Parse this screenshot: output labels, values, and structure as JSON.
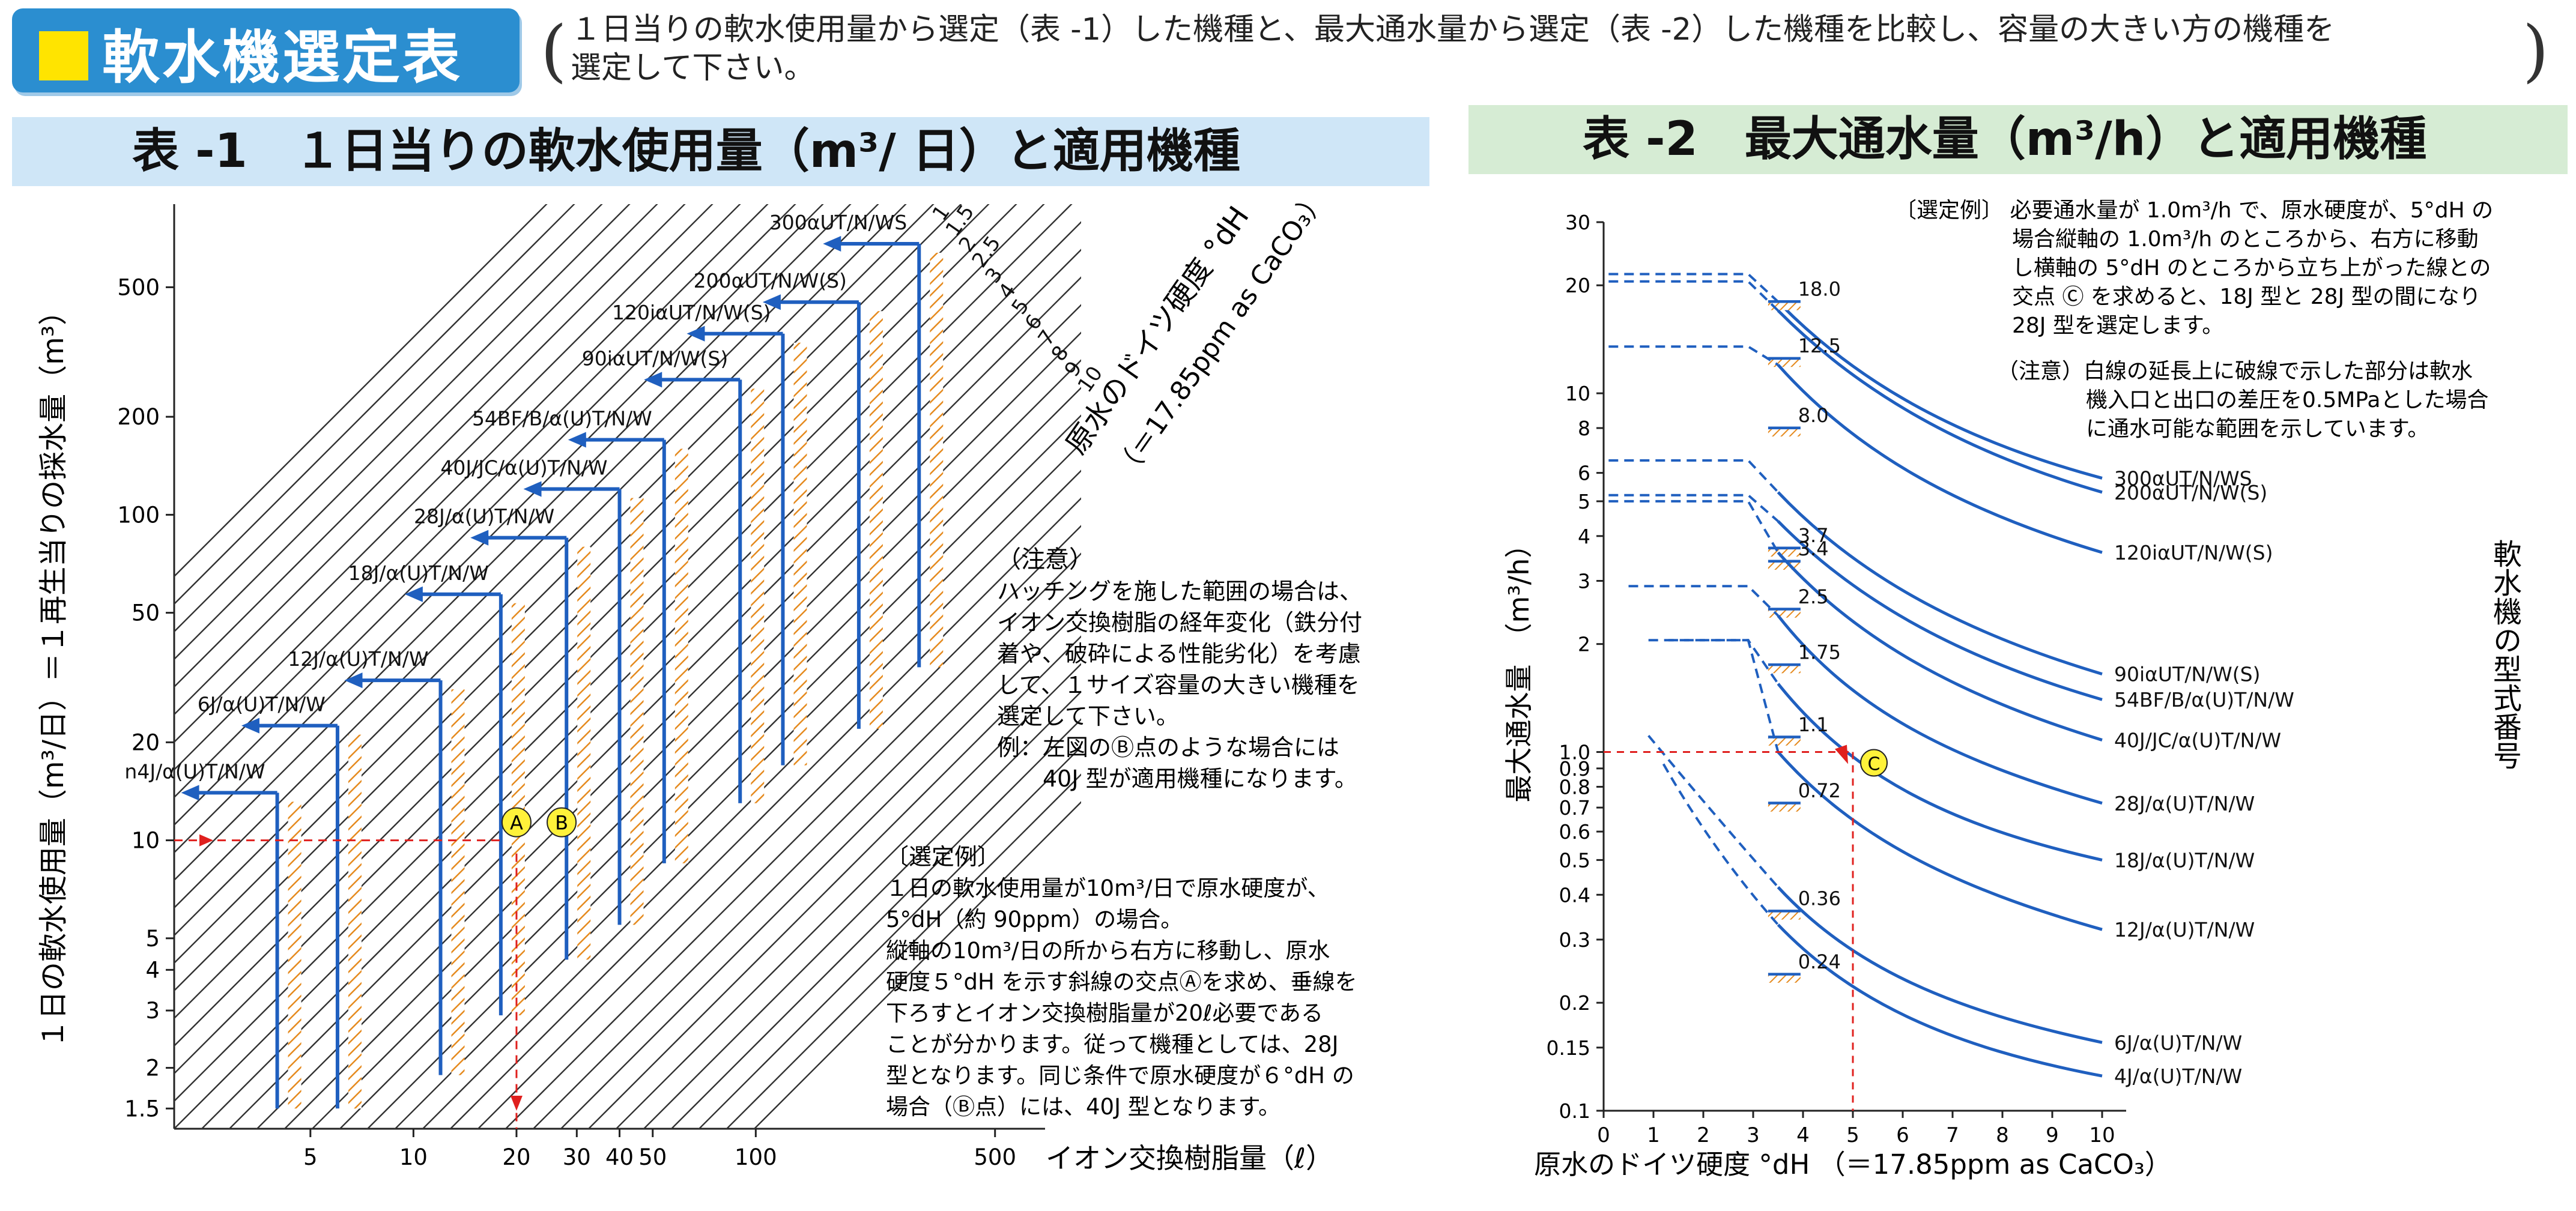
{
  "header": {
    "title": "軟水機選定表",
    "note_line1": "１日当りの軟水使用量から選定（表 -1）した機種と、最大通水量から選定（表 -2）した機種を比較し、容量の大きい方の機種を",
    "note_line2": "選定して下さい。"
  },
  "table1": {
    "title": "表 -1　１日当りの軟水使用量（m³/ 日）と適用機種",
    "left_axis_label": "１日の軟水使用量（m³/日）＝１再生当りの採水量（m³）",
    "x_axis_label": "イオン交換樹脂量（ℓ）",
    "diag_label1": "原水のドイツ硬度 °dH",
    "diag_label2": "（＝17.85ppm as CaCO₃）",
    "note_title": "（注意）",
    "note_lines": [
      "ハッチングを施した範囲の場合は、",
      "イオン交換樹脂の経年変化（鉄分付",
      "着や、破砕による性能劣化）を考慮",
      "して、１サイズ容量の大きい機種を",
      "選定して下さい。",
      "例：左図のⒷ点のような場合には",
      "　　40J 型が適用機種になります。"
    ],
    "example_title": "〔選定例〕",
    "example_lines": [
      "１日の軟水使用量が10m³/日で原水硬度が、",
      "5°dH（約 90ppm）の場合。",
      "縦軸の10m³/日の所から右方に移動し、原水",
      "硬度５°dH を示す斜線の交点Ⓐを求め、垂線を",
      "下ろすとイオン交換樹脂量が20ℓ必要である",
      "ことが分かります。従って機種としては、28J",
      "型となります。同じ条件で原水硬度が６°dH の",
      "場合（Ⓑ点）には、40J 型となります。"
    ],
    "point_a": "A",
    "point_b": "B"
  },
  "table2": {
    "title": "表 -2　最大通水量（m³/h）と適用機種",
    "y_axis_label": "最大通水量　（m³/h）",
    "x_axis_label": "原水のドイツ硬度 °dH （＝17.85ppm as CaCO₃）",
    "right_label": "軟水機の型式番号",
    "example_lines": [
      "〔選定例〕 必要通水量が 1.0m³/h で、原水硬度が、5°dH の",
      "場合縦軸の 1.0m³/h のところから、右方に移動",
      "し横軸の 5°dH のところから立ち上がった線との",
      "交点 Ⓒ を求めると、18J 型と 28J 型の間になり",
      "28J 型を選定します。"
    ],
    "caution_lines": [
      "（注意）白線の延長上に破線で示した部分は軟水",
      "機入口と出口の差圧を0.5MPaとした場合",
      "に通水可能な範囲を示しています。"
    ],
    "point_c": "C"
  },
  "chart_data": [
    {
      "type": "line",
      "title": "表 -1　１日当りの軟水使用量（m³/ 日）と適用機種",
      "xlabel": "イオン交換樹脂量（ℓ）",
      "ylabel": "１日の軟水使用量（m³/日）＝１再生当りの採水量（m³）",
      "x_scale": "log",
      "y_scale": "log",
      "xlim": [
        2,
        700
      ],
      "ylim": [
        1.3,
        900
      ],
      "x_ticks": [
        5,
        10,
        20,
        30,
        40,
        50,
        100,
        500
      ],
      "y_ticks": [
        1.5,
        2,
        3,
        4,
        5,
        10,
        20,
        50,
        100,
        200,
        500
      ],
      "hardness_lines_dH": [
        "1",
        "1.5",
        "2",
        "2.5",
        "3",
        "4",
        "5",
        "6",
        "7",
        "8",
        "9",
        "10"
      ],
      "model_capacities": [
        {
          "model": "n4J/α(U)T/N/W",
          "resin_l": 4,
          "max_m3": 14,
          "min_m3": 1.5
        },
        {
          "model": "6J/α(U)T/N/W",
          "resin_l": 6,
          "max_m3": 22.5,
          "min_m3": 1.5
        },
        {
          "model": "12J/α(U)T/N/W",
          "resin_l": 12,
          "max_m3": 31,
          "min_m3": 1.9
        },
        {
          "model": "18J/α(U)T/N/W",
          "resin_l": 18,
          "max_m3": 57,
          "min_m3": 2.9
        },
        {
          "model": "28J/α(U)T/N/W",
          "resin_l": 28,
          "max_m3": 85,
          "min_m3": 4.3
        },
        {
          "model": "40J/JC/α(U)T/N/W",
          "resin_l": 40,
          "max_m3": 120,
          "min_m3": 5.5
        },
        {
          "model": "54BF/B/α(U)T/N/W",
          "resin_l": 54,
          "max_m3": 170,
          "min_m3": 8.5
        },
        {
          "model": "90iαUT/N/W(S)",
          "resin_l": 90,
          "max_m3": 260,
          "min_m3": 13
        },
        {
          "model": "120iαUT/N/W(S)",
          "resin_l": 120,
          "max_m3": 360,
          "min_m3": 17
        },
        {
          "model": "200αUT/N/W(S)",
          "resin_l": 200,
          "max_m3": 450,
          "min_m3": 22
        },
        {
          "model": "300αUT/N/WS",
          "resin_l": 300,
          "max_m3": 680,
          "min_m3": 34
        }
      ],
      "example": {
        "usage_m3": 10,
        "hardness_dH": 5,
        "resin_l": 20,
        "point_b_resin_l": 24
      }
    },
    {
      "type": "line",
      "title": "表 -2　最大通水量（m³/h）と適用機種",
      "xlabel": "原水のドイツ硬度 °dH （＝17.85ppm as CaCO₃）",
      "ylabel": "最大通水量　（m³/h）",
      "y_scale": "log",
      "xlim": [
        0,
        10
      ],
      "ylim": [
        0.1,
        30
      ],
      "x_ticks": [
        "0",
        "1",
        "2",
        "3",
        "4",
        "5",
        "6",
        "7",
        "8",
        "9",
        "10"
      ],
      "y_ticks": [
        "0.1",
        "0.15",
        "0.2",
        "0.3",
        "0.4",
        "0.5",
        "0.6",
        "0.7",
        "0.8",
        "0.9",
        "1.0",
        "2",
        "3",
        "4",
        "5",
        "6",
        "8",
        "10",
        "20",
        "30"
      ],
      "series": [
        {
          "name": "300αUT/N/WS",
          "rated": "18.0",
          "dashed_max": 21.5,
          "x": [
            3.5,
            5,
            7,
            10
          ],
          "y": [
            18,
            11,
            7.5,
            5.8
          ]
        },
        {
          "name": "200αUT/N/W(S)",
          "rated": "12.5",
          "dashed_max": 20.5,
          "x": [
            3.5,
            5,
            7,
            10
          ],
          "y": [
            17,
            10.5,
            7,
            5.3
          ]
        },
        {
          "name": "120iαUT/N/W(S)",
          "rated": "8.0",
          "dashed_max": 13.5,
          "x": [
            3.5,
            5,
            7,
            10
          ],
          "y": [
            12,
            7,
            4.8,
            3.6
          ]
        },
        {
          "name": "90iαUT/N/W(S)",
          "rated": "3.7",
          "dashed_max": 6.5,
          "x": [
            3.5,
            5,
            7,
            10
          ],
          "y": [
            5.3,
            3.2,
            2.2,
            1.65
          ]
        },
        {
          "name": "54BF/B/α(U)T/N/W",
          "rated": "3.4",
          "dashed_max": 5.2,
          "x": [
            3.5,
            5,
            7,
            10
          ],
          "y": [
            4.4,
            2.7,
            1.85,
            1.4
          ]
        },
        {
          "name": "40J/JC/α(U)T/N/W",
          "rated": "2.5",
          "dashed_max": 5.0,
          "x": [
            3.5,
            5,
            7,
            10
          ],
          "y": [
            3.6,
            2.1,
            1.45,
            1.08
          ]
        },
        {
          "name": "28J/α(U)T/N/W",
          "rated": "1.75",
          "dashed_max": 2.9,
          "x": [
            3.5,
            5,
            7,
            10
          ],
          "y": [
            2.4,
            1.3,
            0.95,
            0.72
          ]
        },
        {
          "name": "18J/α(U)T/N/W",
          "rated": "1.1",
          "dashed_max": 2.05,
          "x": [
            3.5,
            5,
            7,
            10
          ],
          "y": [
            1.55,
            0.85,
            0.62,
            0.5
          ]
        },
        {
          "name": "12J/α(U)T/N/W",
          "rated": "0.72",
          "dashed_max": 2.05,
          "x": [
            3.5,
            5,
            7,
            10
          ],
          "y": [
            1.0,
            0.58,
            0.42,
            0.32
          ]
        },
        {
          "name": "6J/α(U)T/N/W",
          "rated": "0.36",
          "dashed_max": 1.2,
          "x": [
            3.5,
            5,
            7,
            10
          ],
          "y": [
            0.42,
            0.25,
            0.19,
            0.155
          ]
        },
        {
          "name": "4J/α(U)T/N/W",
          "rated": "0.24",
          "dashed_max": 1.0,
          "x": [
            3.5,
            5,
            7,
            10
          ],
          "y": [
            0.33,
            0.2,
            0.15,
            0.125
          ]
        }
      ],
      "example": {
        "flow_m3h": 1.0,
        "hardness_dH": 5
      }
    }
  ]
}
